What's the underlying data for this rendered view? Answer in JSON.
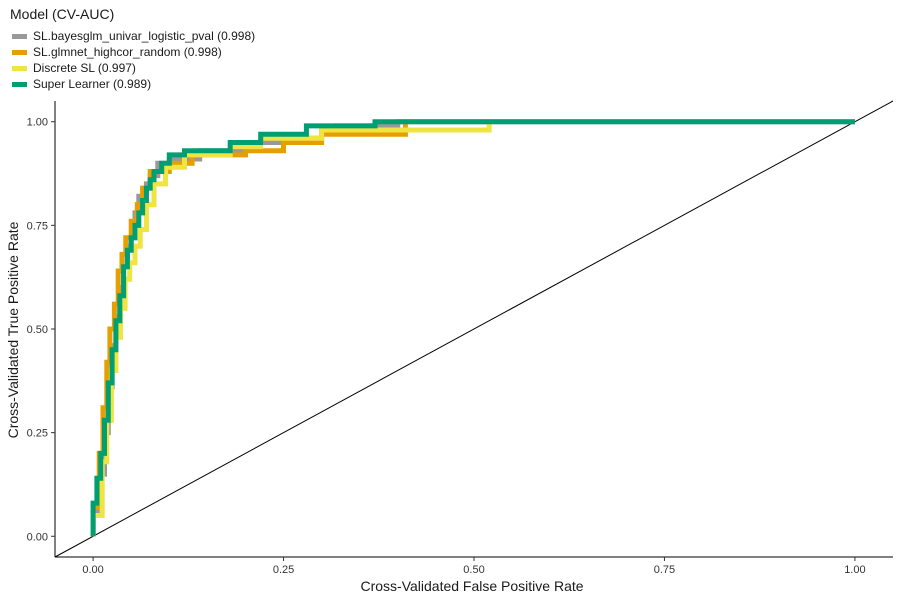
{
  "chart_data": {
    "type": "line",
    "title": "",
    "xlabel": "Cross-Validated False Positive Rate",
    "ylabel": "Cross-Validated True Positive Rate",
    "xlim": [
      -0.05,
      1.05
    ],
    "ylim": [
      -0.05,
      1.05
    ],
    "x_ticks": [
      "0.00",
      "0.25",
      "0.50",
      "0.75",
      "1.00"
    ],
    "y_ticks": [
      "0.00",
      "0.25",
      "0.50",
      "0.75",
      "1.00"
    ],
    "grid": false,
    "legend_placement": "top-left",
    "legend_title": "Model (CV-AUC)",
    "reference_line": {
      "x": [
        -0.05,
        1.05
      ],
      "y": [
        -0.05,
        1.05
      ],
      "color": "#000000"
    },
    "series": [
      {
        "name": "SL.bayesglm_univar_logistic_pval (0.998)",
        "color": "#999999",
        "x": [
          0.0,
          0.0,
          0.01,
          0.01,
          0.015,
          0.015,
          0.02,
          0.02,
          0.025,
          0.025,
          0.03,
          0.03,
          0.035,
          0.035,
          0.04,
          0.04,
          0.045,
          0.045,
          0.05,
          0.05,
          0.055,
          0.055,
          0.06,
          0.06,
          0.07,
          0.07,
          0.075,
          0.075,
          0.085,
          0.085,
          0.1,
          0.1,
          0.14,
          0.14,
          0.2,
          0.2,
          0.28,
          0.28,
          0.3,
          0.3,
          0.32,
          0.32,
          0.4,
          0.4,
          1.0
        ],
        "y": [
          0.0,
          0.06,
          0.06,
          0.15,
          0.15,
          0.25,
          0.25,
          0.36,
          0.36,
          0.46,
          0.46,
          0.53,
          0.53,
          0.6,
          0.6,
          0.65,
          0.65,
          0.7,
          0.7,
          0.72,
          0.72,
          0.78,
          0.78,
          0.82,
          0.82,
          0.85,
          0.85,
          0.87,
          0.87,
          0.9,
          0.9,
          0.91,
          0.91,
          0.93,
          0.93,
          0.95,
          0.95,
          0.96,
          0.96,
          0.98,
          0.98,
          0.99,
          0.99,
          1.0,
          1.0
        ]
      },
      {
        "name": "SL.glmnet_highcor_random (0.998)",
        "color": "#E69F00",
        "x": [
          0.0,
          0.0,
          0.008,
          0.008,
          0.013,
          0.013,
          0.018,
          0.018,
          0.022,
          0.022,
          0.028,
          0.028,
          0.033,
          0.033,
          0.038,
          0.038,
          0.043,
          0.043,
          0.05,
          0.05,
          0.058,
          0.058,
          0.065,
          0.065,
          0.075,
          0.075,
          0.1,
          0.1,
          0.13,
          0.13,
          0.2,
          0.2,
          0.25,
          0.25,
          0.3,
          0.3,
          0.41,
          0.41
        ],
        "y": [
          0.0,
          0.07,
          0.07,
          0.2,
          0.2,
          0.31,
          0.31,
          0.42,
          0.42,
          0.5,
          0.5,
          0.56,
          0.56,
          0.64,
          0.64,
          0.68,
          0.68,
          0.72,
          0.72,
          0.76,
          0.76,
          0.8,
          0.8,
          0.84,
          0.84,
          0.88,
          0.88,
          0.9,
          0.9,
          0.92,
          0.92,
          0.93,
          0.93,
          0.95,
          0.95,
          0.97,
          0.97,
          1.0
        ]
      },
      {
        "name": "Discrete SL (0.997)",
        "color": "#F0E442",
        "x": [
          0.0,
          0.0,
          0.012,
          0.012,
          0.018,
          0.018,
          0.024,
          0.024,
          0.03,
          0.03,
          0.036,
          0.036,
          0.042,
          0.042,
          0.048,
          0.048,
          0.055,
          0.055,
          0.062,
          0.062,
          0.07,
          0.07,
          0.08,
          0.08,
          0.095,
          0.095,
          0.12,
          0.12,
          0.18,
          0.18,
          0.22,
          0.22,
          0.3,
          0.3,
          0.52,
          0.52
        ],
        "y": [
          0.0,
          0.05,
          0.05,
          0.18,
          0.18,
          0.28,
          0.28,
          0.4,
          0.4,
          0.48,
          0.48,
          0.55,
          0.55,
          0.62,
          0.62,
          0.66,
          0.66,
          0.7,
          0.7,
          0.74,
          0.74,
          0.8,
          0.8,
          0.85,
          0.85,
          0.89,
          0.89,
          0.92,
          0.92,
          0.94,
          0.94,
          0.96,
          0.96,
          0.98,
          0.98,
          1.0
        ]
      },
      {
        "name": "Super Learner (0.989)",
        "color": "#009E73",
        "x": [
          0.0,
          0.0,
          0.005,
          0.005,
          0.01,
          0.01,
          0.015,
          0.015,
          0.02,
          0.02,
          0.025,
          0.025,
          0.03,
          0.03,
          0.035,
          0.035,
          0.04,
          0.04,
          0.045,
          0.045,
          0.05,
          0.05,
          0.055,
          0.055,
          0.06,
          0.06,
          0.065,
          0.065,
          0.07,
          0.07,
          0.075,
          0.075,
          0.08,
          0.08,
          0.09,
          0.09,
          0.1,
          0.1,
          0.12,
          0.12,
          0.18,
          0.18,
          0.22,
          0.22,
          0.28,
          0.28,
          0.37,
          0.37,
          1.0
        ],
        "y": [
          0.0,
          0.08,
          0.08,
          0.14,
          0.14,
          0.2,
          0.2,
          0.28,
          0.28,
          0.37,
          0.37,
          0.45,
          0.45,
          0.52,
          0.52,
          0.58,
          0.58,
          0.65,
          0.65,
          0.69,
          0.69,
          0.72,
          0.72,
          0.75,
          0.75,
          0.78,
          0.78,
          0.81,
          0.81,
          0.84,
          0.84,
          0.86,
          0.86,
          0.88,
          0.88,
          0.9,
          0.9,
          0.92,
          0.92,
          0.93,
          0.93,
          0.95,
          0.95,
          0.97,
          0.97,
          0.99,
          0.99,
          1.0,
          1.0
        ]
      }
    ]
  }
}
